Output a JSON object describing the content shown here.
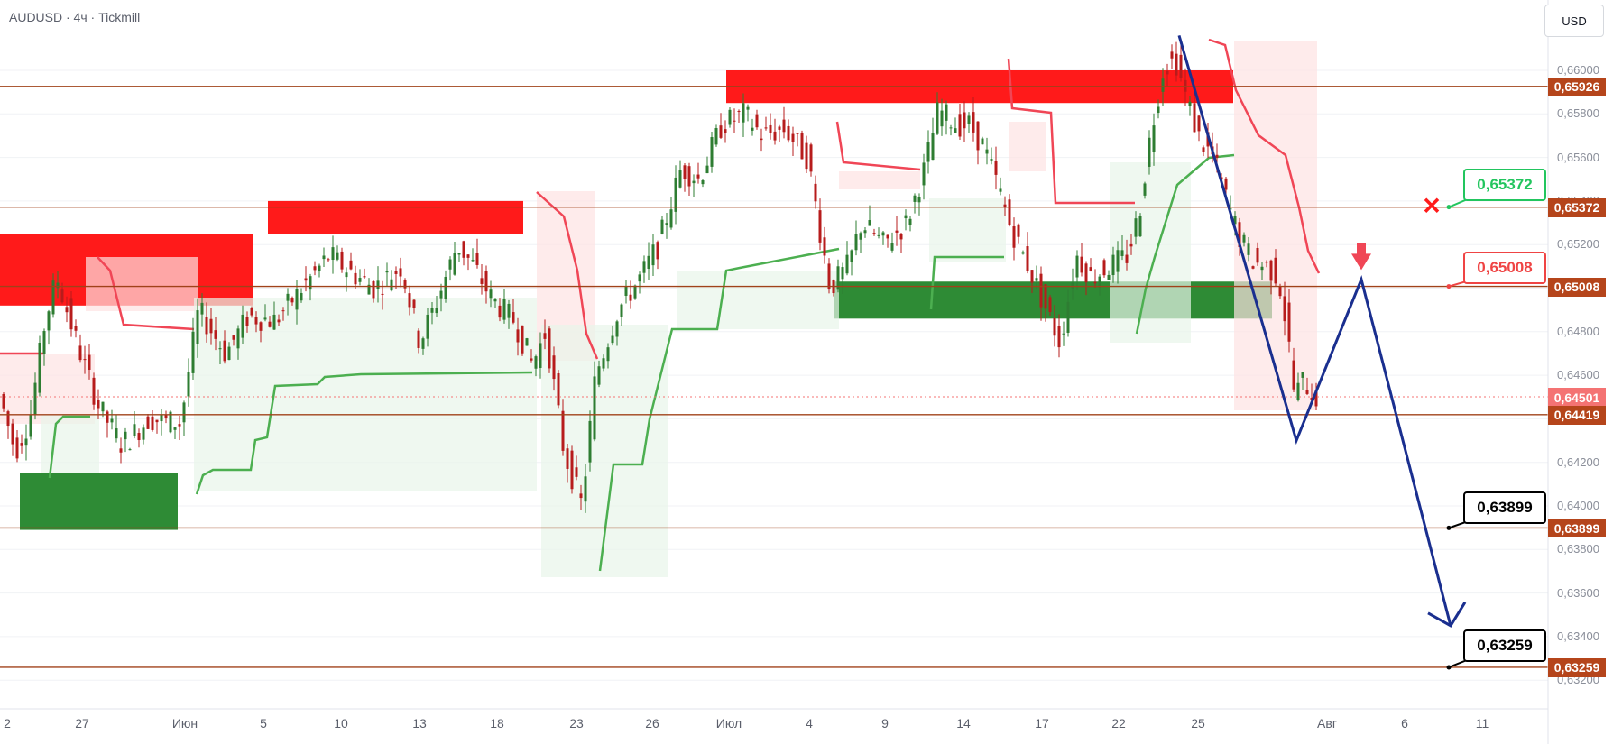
{
  "header": {
    "symbol": "AUDUSD · 4ч · Tickmill",
    "currency": "USD"
  },
  "price_axis": {
    "ticks": [
      "0,66000",
      "0,65800",
      "0,65600",
      "0,65400",
      "0,65200",
      "0,65000",
      "0,64800",
      "0,64600",
      "0,64400",
      "0,64200",
      "0,64000",
      "0,63800",
      "0,63600",
      "0,63400",
      "0,63200"
    ],
    "levels": [
      {
        "value": "0,65926",
        "color": "#b5451b"
      },
      {
        "value": "0,65372",
        "color": "#b5451b"
      },
      {
        "value": "0,65008",
        "color": "#b5451b"
      },
      {
        "value": "0,64501",
        "color": "#f47373"
      },
      {
        "value": "0,64419",
        "color": "#b5451b"
      },
      {
        "value": "0,63899",
        "color": "#b5451b"
      },
      {
        "value": "0,63259",
        "color": "#b5451b"
      }
    ]
  },
  "time_axis": [
    "2",
    "27",
    "Июн",
    "5",
    "10",
    "13",
    "18",
    "23",
    "26",
    "Июл",
    "4",
    "9",
    "14",
    "17",
    "22",
    "25",
    "Авг",
    "6",
    "11"
  ],
  "callouts": [
    {
      "text": "0,65372",
      "color": "#22c55e"
    },
    {
      "text": "0,65008",
      "color": "#ef4444"
    },
    {
      "text": "0,63899",
      "color": "#000000"
    },
    {
      "text": "0,63259",
      "color": "#000000"
    }
  ],
  "colors": {
    "candle_up": "#2e7d32",
    "candle_down": "#b71c1c",
    "level_line": "#a0421a",
    "supply": "#ff1a1a",
    "demand": "#2e8b35",
    "projection": "#1a2f8f"
  },
  "chart_data": {
    "type": "candlestick",
    "symbol": "AUDUSD",
    "timeframe": "4ч",
    "y_range": [
      0.6315,
      0.6615
    ],
    "horizontal_levels": [
      0.65926,
      0.65372,
      0.65008,
      0.64419,
      0.63899,
      0.63259
    ],
    "last_price": 0.64501,
    "supply_zones": [
      [
        0.6492,
        0.6525
      ],
      [
        0.6525,
        0.654
      ],
      [
        0.6585,
        0.66
      ]
    ],
    "demand_zones": [
      [
        0.6389,
        0.6415
      ],
      [
        0.6486,
        0.6503
      ]
    ],
    "projection_path": [
      0.6616,
      0.643,
      0.6504,
      0.6345
    ],
    "stop_marker": 0.6538,
    "entry_marker": 0.6505
  }
}
